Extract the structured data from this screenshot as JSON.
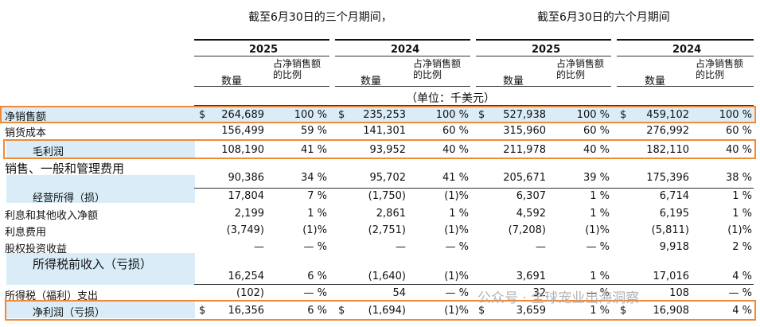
{
  "header": {
    "three_months": "截至6月30日的三个月期间，",
    "six_months": "截至6月30日的六个月期间",
    "years": [
      "2025",
      "2024",
      "2025",
      "2024"
    ],
    "col_qty": "数量",
    "col_pct_line1": "占净销售额",
    "col_pct_line2": "的比例",
    "unit": "（单位：千美元）"
  },
  "rows": [
    {
      "label": "净销售额",
      "cells": [
        {
          "cur": "$",
          "v": "264,689",
          "p": "100 %"
        },
        {
          "cur": "$",
          "v": "235,253",
          "p": "100 %"
        },
        {
          "cur": "$",
          "v": "527,938",
          "p": "100 %"
        },
        {
          "cur": "$",
          "v": "459,102",
          "p": "100 %"
        }
      ]
    },
    {
      "label": "销货成本",
      "cells": [
        {
          "cur": "",
          "v": "156,499",
          "p": "59 %"
        },
        {
          "cur": "",
          "v": "141,301",
          "p": "60 %"
        },
        {
          "cur": "",
          "v": "315,960",
          "p": "60 %"
        },
        {
          "cur": "",
          "v": "276,992",
          "p": "60 %"
        }
      ]
    },
    {
      "label": "毛利润",
      "cells": [
        {
          "cur": "",
          "v": "108,190",
          "p": "41 %"
        },
        {
          "cur": "",
          "v": "93,952",
          "p": "40 %"
        },
        {
          "cur": "",
          "v": "211,978",
          "p": "40 %"
        },
        {
          "cur": "",
          "v": "182,110",
          "p": "40 %"
        }
      ]
    },
    {
      "label": "销售、一般和管理费用",
      "cells": [
        {
          "cur": "",
          "v": "90,386",
          "p": "34 %"
        },
        {
          "cur": "",
          "v": "95,702",
          "p": "41 %"
        },
        {
          "cur": "",
          "v": "205,671",
          "p": "39 %"
        },
        {
          "cur": "",
          "v": "175,396",
          "p": "38 %"
        }
      ]
    },
    {
      "label": "经营所得（损）",
      "cells": [
        {
          "cur": "",
          "v": "17,804",
          "p": "7 %"
        },
        {
          "cur": "",
          "v": "(1,750)",
          "p": "(1)%"
        },
        {
          "cur": "",
          "v": "6,307",
          "p": "1 %"
        },
        {
          "cur": "",
          "v": "6,714",
          "p": "1 %"
        }
      ]
    },
    {
      "label": "利息和其他收入净额",
      "cells": [
        {
          "cur": "",
          "v": "2,199",
          "p": "1 %"
        },
        {
          "cur": "",
          "v": "2,861",
          "p": "1 %"
        },
        {
          "cur": "",
          "v": "4,592",
          "p": "1 %"
        },
        {
          "cur": "",
          "v": "6,195",
          "p": "1 %"
        }
      ]
    },
    {
      "label": "利息费用",
      "cells": [
        {
          "cur": "",
          "v": "(3,749)",
          "p": "(1)%"
        },
        {
          "cur": "",
          "v": "(2,751)",
          "p": "(1)%"
        },
        {
          "cur": "",
          "v": "(7,208)",
          "p": "(1)%"
        },
        {
          "cur": "",
          "v": "(5,811)",
          "p": "(1)%"
        }
      ]
    },
    {
      "label": "股权投资收益",
      "cells": [
        {
          "cur": "",
          "v": "—",
          "p": "— %"
        },
        {
          "cur": "",
          "v": "—",
          "p": "— %"
        },
        {
          "cur": "",
          "v": "—",
          "p": "— %"
        },
        {
          "cur": "",
          "v": "9,918",
          "p": "2 %"
        }
      ]
    },
    {
      "label": "所得税前收入（亏损）",
      "cells": [
        {
          "cur": "",
          "v": "16,254",
          "p": "6 %"
        },
        {
          "cur": "",
          "v": "(1,640)",
          "p": "(1)%"
        },
        {
          "cur": "",
          "v": "3,691",
          "p": "1 %"
        },
        {
          "cur": "",
          "v": "17,016",
          "p": "4 %"
        }
      ]
    },
    {
      "label": "所得税（福利）支出",
      "cells": [
        {
          "cur": "",
          "v": "(102)",
          "p": "— %"
        },
        {
          "cur": "",
          "v": "54",
          "p": "— %"
        },
        {
          "cur": "",
          "v": "32",
          "p": "— %"
        },
        {
          "cur": "",
          "v": "108",
          "p": "— %"
        }
      ]
    },
    {
      "label": "净利润（亏损）",
      "cells": [
        {
          "cur": "$",
          "v": "16,356",
          "p": "6 %"
        },
        {
          "cur": "$",
          "v": "(1,694)",
          "p": "(1)%"
        },
        {
          "cur": "$",
          "v": "3,659",
          "p": "1 %"
        },
        {
          "cur": "$",
          "v": "16,908",
          "p": "4 %"
        }
      ]
    }
  ],
  "watermark": "公众号 · 全球宠业出海洞察",
  "colors": {
    "highlight_border": "#f08a35",
    "row_band": "#d9ecf8"
  }
}
